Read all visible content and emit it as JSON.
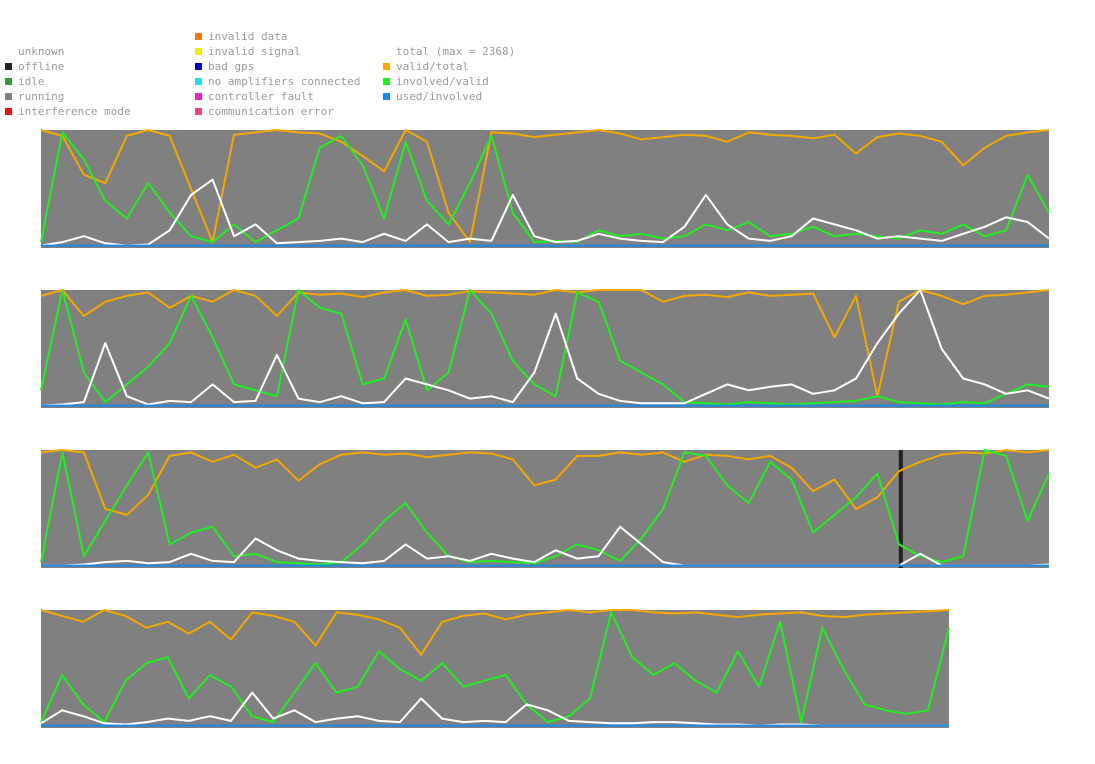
{
  "legend": {
    "status": [
      {
        "label": "unknown",
        "color": "",
        "icon": "none"
      },
      {
        "label": "offline",
        "color": "#222222",
        "icon": "square"
      },
      {
        "label": "idle",
        "color": "#3a9a3a",
        "icon": "square"
      },
      {
        "label": "running",
        "color": "#808080",
        "icon": "square"
      },
      {
        "label": "interference mode",
        "color": "#ee1111",
        "icon": "square"
      }
    ],
    "faults": [
      {
        "label": "invalid data",
        "color": "#ff7700",
        "icon": "square"
      },
      {
        "label": "invalid signal",
        "color": "#eeee00",
        "icon": "square"
      },
      {
        "label": "bad gps",
        "color": "#0000cc",
        "icon": "square"
      },
      {
        "label": "no amplifiers connected",
        "color": "#22ddee",
        "icon": "square"
      },
      {
        "label": "controller fault",
        "color": "#ee22cc",
        "icon": "square"
      },
      {
        "label": "communication error",
        "color": "#ee4477",
        "icon": "square"
      }
    ],
    "lines": [
      {
        "label": "total (max = 2368)",
        "color": "",
        "icon": "none"
      },
      {
        "label": "valid/total",
        "color": "#f5a800",
        "icon": "square"
      },
      {
        "label": "involved/valid",
        "color": "#22ee22",
        "icon": "square"
      },
      {
        "label": "used/involved",
        "color": "#1e88e5",
        "icon": "square"
      }
    ]
  },
  "chart_data": {
    "type": "line",
    "title": "",
    "total_max": 2368,
    "ylim": [
      0,
      1
    ],
    "background_color": "#808080",
    "series_colors": {
      "total": "#ffffff",
      "valid_total": "#f5a800",
      "involved_valid": "#22ee22",
      "used_involved": "#1e88e5"
    },
    "strips": [
      {
        "samples": 48,
        "offline_intervals": [],
        "total": [
          0.02,
          0.05,
          0.1,
          0.04,
          0.02,
          0.03,
          0.15,
          0.45,
          0.58,
          0.1,
          0.2,
          0.04,
          0.05,
          0.06,
          0.08,
          0.05,
          0.12,
          0.06,
          0.2,
          0.05,
          0.08,
          0.06,
          0.45,
          0.1,
          0.05,
          0.06,
          0.12,
          0.08,
          0.06,
          0.05,
          0.18,
          0.45,
          0.2,
          0.08,
          0.06,
          0.1,
          0.25,
          0.2,
          0.15,
          0.08,
          0.1,
          0.08,
          0.06,
          0.12,
          0.18,
          0.26,
          0.22,
          0.08
        ],
        "valid_total": [
          1.0,
          0.95,
          0.62,
          0.55,
          0.95,
          1.0,
          0.95,
          0.5,
          0.05,
          0.96,
          0.98,
          1.0,
          0.98,
          0.97,
          0.9,
          0.78,
          0.65,
          1.0,
          0.9,
          0.3,
          0.05,
          0.98,
          0.97,
          0.94,
          0.96,
          0.98,
          1.0,
          0.97,
          0.92,
          0.94,
          0.96,
          0.95,
          0.9,
          0.98,
          0.96,
          0.95,
          0.93,
          0.96,
          0.8,
          0.94,
          0.97,
          0.95,
          0.9,
          0.7,
          0.85,
          0.95,
          0.98,
          1.0
        ],
        "involved_valid": [
          0.05,
          0.98,
          0.75,
          0.4,
          0.25,
          0.55,
          0.3,
          0.1,
          0.05,
          0.2,
          0.05,
          0.15,
          0.25,
          0.85,
          0.95,
          0.7,
          0.25,
          0.9,
          0.4,
          0.2,
          0.55,
          0.95,
          0.3,
          0.05,
          0.06,
          0.05,
          0.15,
          0.1,
          0.12,
          0.08,
          0.1,
          0.2,
          0.15,
          0.22,
          0.1,
          0.12,
          0.18,
          0.1,
          0.12,
          0.1,
          0.08,
          0.15,
          0.12,
          0.2,
          0.1,
          0.15,
          0.62,
          0.3
        ],
        "used_involved": [
          0.02,
          0.02,
          0.02,
          0.02,
          0.02,
          0.02,
          0.02,
          0.02,
          0.02,
          0.02,
          0.02,
          0.02,
          0.02,
          0.02,
          0.02,
          0.02,
          0.02,
          0.02,
          0.02,
          0.02,
          0.02,
          0.02,
          0.02,
          0.02,
          0.02,
          0.02,
          0.02,
          0.02,
          0.02,
          0.02,
          0.02,
          0.02,
          0.02,
          0.02,
          0.02,
          0.02,
          0.02,
          0.02,
          0.02,
          0.02,
          0.02,
          0.02,
          0.02,
          0.02,
          0.02,
          0.02,
          0.02,
          0.02
        ]
      },
      {
        "samples": 48,
        "offline_intervals": [],
        "total": [
          0.02,
          0.03,
          0.05,
          0.55,
          0.1,
          0.03,
          0.06,
          0.05,
          0.2,
          0.05,
          0.06,
          0.45,
          0.08,
          0.05,
          0.1,
          0.04,
          0.05,
          0.25,
          0.2,
          0.15,
          0.08,
          0.1,
          0.05,
          0.3,
          0.8,
          0.25,
          0.12,
          0.06,
          0.04,
          0.04,
          0.04,
          0.12,
          0.2,
          0.15,
          0.18,
          0.2,
          0.12,
          0.15,
          0.25,
          0.55,
          0.8,
          1.0,
          0.5,
          0.25,
          0.2,
          0.12,
          0.15,
          0.08
        ],
        "valid_total": [
          0.95,
          1.0,
          0.78,
          0.9,
          0.95,
          0.98,
          0.85,
          0.95,
          0.9,
          1.0,
          0.95,
          0.78,
          0.98,
          0.96,
          0.97,
          0.94,
          0.98,
          1.0,
          0.95,
          0.96,
          0.99,
          0.98,
          0.97,
          0.96,
          1.0,
          0.98,
          1.0,
          1.0,
          1.0,
          0.9,
          0.95,
          0.96,
          0.94,
          0.98,
          0.95,
          0.96,
          0.97,
          0.6,
          0.95,
          0.1,
          0.9,
          1.0,
          0.95,
          0.88,
          0.95,
          0.96,
          0.98,
          1.0
        ],
        "involved_valid": [
          0.15,
          1.0,
          0.3,
          0.05,
          0.2,
          0.35,
          0.55,
          0.95,
          0.6,
          0.2,
          0.15,
          0.1,
          1.0,
          0.85,
          0.8,
          0.2,
          0.25,
          0.75,
          0.15,
          0.3,
          1.0,
          0.8,
          0.4,
          0.2,
          0.1,
          0.98,
          0.9,
          0.4,
          0.3,
          0.2,
          0.05,
          0.04,
          0.03,
          0.05,
          0.04,
          0.03,
          0.04,
          0.05,
          0.06,
          0.1,
          0.05,
          0.04,
          0.03,
          0.05,
          0.04,
          0.12,
          0.2,
          0.18
        ],
        "used_involved": [
          0.02,
          0.02,
          0.02,
          0.02,
          0.02,
          0.02,
          0.02,
          0.02,
          0.02,
          0.02,
          0.02,
          0.02,
          0.02,
          0.02,
          0.02,
          0.02,
          0.02,
          0.02,
          0.02,
          0.02,
          0.02,
          0.02,
          0.02,
          0.02,
          0.02,
          0.02,
          0.02,
          0.02,
          0.02,
          0.02,
          0.02,
          0.02,
          0.02,
          0.02,
          0.02,
          0.02,
          0.02,
          0.02,
          0.02,
          0.02,
          0.02,
          0.02,
          0.02,
          0.02,
          0.02,
          0.02,
          0.02,
          0.02
        ]
      },
      {
        "samples": 48,
        "offline_intervals": [
          [
            0.851,
            0.855
          ]
        ],
        "total": [
          0.02,
          0.02,
          0.03,
          0.05,
          0.06,
          0.04,
          0.05,
          0.12,
          0.06,
          0.05,
          0.25,
          0.15,
          0.08,
          0.06,
          0.05,
          0.04,
          0.06,
          0.2,
          0.08,
          0.1,
          0.06,
          0.12,
          0.08,
          0.05,
          0.15,
          0.08,
          0.1,
          0.35,
          0.2,
          0.05,
          0.02,
          0.02,
          0.02,
          0.02,
          0.02,
          0.02,
          0.02,
          0.02,
          0.02,
          0.02,
          0.02,
          0.12,
          0.02,
          0.02,
          0.02,
          0.02,
          0.02,
          0.03
        ],
        "valid_total": [
          0.98,
          1.0,
          0.98,
          0.5,
          0.45,
          0.62,
          0.95,
          0.98,
          0.9,
          0.96,
          0.85,
          0.92,
          0.74,
          0.88,
          0.96,
          0.98,
          0.96,
          0.97,
          0.94,
          0.96,
          0.98,
          0.97,
          0.92,
          0.7,
          0.75,
          0.95,
          0.95,
          0.98,
          0.96,
          0.98,
          0.9,
          0.96,
          0.95,
          0.92,
          0.95,
          0.85,
          0.65,
          0.75,
          0.5,
          0.6,
          0.82,
          0.9,
          0.96,
          0.98,
          0.97,
          1.0,
          0.98,
          1.0
        ],
        "involved_valid": [
          0.05,
          0.98,
          0.1,
          0.4,
          0.7,
          0.98,
          0.2,
          0.3,
          0.35,
          0.1,
          0.12,
          0.05,
          0.04,
          0.03,
          0.05,
          0.2,
          0.4,
          0.55,
          0.3,
          0.1,
          0.05,
          0.06,
          0.05,
          0.04,
          0.1,
          0.2,
          0.15,
          0.06,
          0.25,
          0.5,
          0.98,
          0.95,
          0.7,
          0.55,
          0.9,
          0.75,
          0.3,
          0.45,
          0.6,
          0.8,
          0.2,
          0.1,
          0.05,
          0.1,
          1.0,
          0.95,
          0.4,
          0.8
        ],
        "used_involved": [
          0.02,
          0.02,
          0.02,
          0.02,
          0.02,
          0.02,
          0.02,
          0.02,
          0.02,
          0.02,
          0.02,
          0.02,
          0.02,
          0.02,
          0.02,
          0.02,
          0.02,
          0.02,
          0.02,
          0.02,
          0.02,
          0.02,
          0.02,
          0.02,
          0.02,
          0.02,
          0.02,
          0.02,
          0.02,
          0.02,
          0.02,
          0.02,
          0.02,
          0.02,
          0.02,
          0.02,
          0.02,
          0.02,
          0.02,
          0.02,
          0.02,
          0.02,
          0.02,
          0.02,
          0.02,
          0.02,
          0.02,
          0.02
        ]
      },
      {
        "samples": 44,
        "offline_intervals": [],
        "total": [
          0.04,
          0.15,
          0.1,
          0.04,
          0.03,
          0.05,
          0.08,
          0.06,
          0.1,
          0.06,
          0.3,
          0.08,
          0.15,
          0.05,
          0.08,
          0.1,
          0.06,
          0.05,
          0.25,
          0.08,
          0.05,
          0.06,
          0.05,
          0.2,
          0.15,
          0.06,
          0.05,
          0.04,
          0.04,
          0.05,
          0.05,
          0.04,
          0.03,
          0.03,
          0.02,
          0.03,
          0.03,
          0.02,
          0.02,
          0.02,
          0.02,
          0.02,
          0.02,
          0.02
        ],
        "valid_total": [
          1.0,
          0.95,
          0.9,
          1.0,
          0.95,
          0.85,
          0.9,
          0.8,
          0.9,
          0.75,
          0.98,
          0.95,
          0.9,
          0.7,
          0.98,
          0.96,
          0.92,
          0.85,
          0.62,
          0.9,
          0.95,
          0.97,
          0.92,
          0.96,
          0.98,
          1.0,
          0.98,
          1.0,
          1.0,
          0.98,
          0.97,
          0.98,
          0.96,
          0.94,
          0.96,
          0.97,
          0.98,
          0.95,
          0.94,
          0.96,
          0.97,
          0.98,
          0.99,
          1.0
        ],
        "involved_valid": [
          0.05,
          0.45,
          0.2,
          0.05,
          0.4,
          0.55,
          0.6,
          0.25,
          0.45,
          0.35,
          0.1,
          0.05,
          0.3,
          0.55,
          0.3,
          0.35,
          0.65,
          0.5,
          0.4,
          0.55,
          0.35,
          0.4,
          0.45,
          0.2,
          0.05,
          0.1,
          0.25,
          0.98,
          0.6,
          0.45,
          0.55,
          0.4,
          0.3,
          0.65,
          0.35,
          0.9,
          0.05,
          0.85,
          0.5,
          0.2,
          0.15,
          0.12,
          0.15,
          0.85
        ],
        "used_involved": [
          0.02,
          0.02,
          0.02,
          0.02,
          0.02,
          0.02,
          0.02,
          0.02,
          0.02,
          0.02,
          0.02,
          0.02,
          0.02,
          0.02,
          0.02,
          0.02,
          0.02,
          0.02,
          0.02,
          0.02,
          0.02,
          0.02,
          0.02,
          0.02,
          0.02,
          0.02,
          0.02,
          0.02,
          0.02,
          0.02,
          0.02,
          0.02,
          0.02,
          0.02,
          0.02,
          0.02,
          0.02,
          0.02,
          0.02,
          0.02,
          0.02,
          0.02,
          0.02,
          0.02
        ]
      }
    ]
  }
}
